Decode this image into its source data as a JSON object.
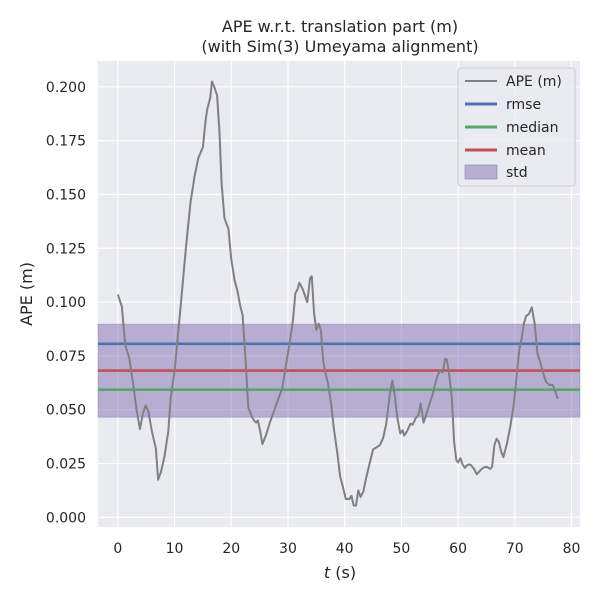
{
  "chart_data": {
    "type": "line",
    "title": "APE w.r.t. translation part (m)",
    "subtitle": "(with Sim(3) Umeyama alignment)",
    "xlabel_italic": "t",
    "xlabel_unit": " (s)",
    "ylabel": "APE (m)",
    "xlim": [
      -3.5,
      81.5
    ],
    "ylim": [
      -0.0045,
      0.212
    ],
    "xticks": [
      0,
      10,
      20,
      30,
      40,
      50,
      60,
      70,
      80
    ],
    "xtick_labels": [
      "0",
      "10",
      "20",
      "30",
      "40",
      "50",
      "60",
      "70",
      "80"
    ],
    "yticks": [
      0.0,
      0.025,
      0.05,
      0.075,
      0.1,
      0.125,
      0.15,
      0.175,
      0.2
    ],
    "ytick_labels": [
      "0.000",
      "0.025",
      "0.050",
      "0.075",
      "0.100",
      "0.125",
      "0.150",
      "0.175",
      "0.200"
    ],
    "grid": true,
    "legend_position": "top-right",
    "series": [
      {
        "name": "APE (m)",
        "color": "#808080",
        "points": [
          [
            0.0,
            0.1035
          ],
          [
            0.7,
            0.098
          ],
          [
            1.3,
            0.08
          ],
          [
            2.0,
            0.074
          ],
          [
            2.7,
            0.062
          ],
          [
            3.3,
            0.05
          ],
          [
            3.9,
            0.041
          ],
          [
            4.4,
            0.048
          ],
          [
            4.9,
            0.052
          ],
          [
            5.4,
            0.049
          ],
          [
            6.0,
            0.04
          ],
          [
            6.7,
            0.032
          ],
          [
            7.1,
            0.0175
          ],
          [
            7.6,
            0.021
          ],
          [
            8.2,
            0.028
          ],
          [
            8.9,
            0.04
          ],
          [
            9.3,
            0.055
          ],
          [
            10.0,
            0.068
          ],
          [
            11.0,
            0.096
          ],
          [
            12.0,
            0.125
          ],
          [
            12.8,
            0.146
          ],
          [
            13.5,
            0.158
          ],
          [
            14.2,
            0.167
          ],
          [
            15.0,
            0.172
          ],
          [
            15.5,
            0.185
          ],
          [
            15.8,
            0.19
          ],
          [
            16.3,
            0.195
          ],
          [
            16.6,
            0.2025
          ],
          [
            17.0,
            0.2
          ],
          [
            17.5,
            0.196
          ],
          [
            17.9,
            0.18
          ],
          [
            18.3,
            0.155
          ],
          [
            18.8,
            0.139
          ],
          [
            19.5,
            0.134
          ],
          [
            20.0,
            0.12
          ],
          [
            20.6,
            0.11
          ],
          [
            21.1,
            0.105
          ],
          [
            21.6,
            0.098
          ],
          [
            22.0,
            0.094
          ],
          [
            22.6,
            0.07
          ],
          [
            23.0,
            0.051
          ],
          [
            23.6,
            0.047
          ],
          [
            24.0,
            0.045
          ],
          [
            24.4,
            0.044
          ],
          [
            24.7,
            0.045
          ],
          [
            25.1,
            0.04
          ],
          [
            25.5,
            0.034
          ],
          [
            26.1,
            0.038
          ],
          [
            26.8,
            0.044
          ],
          [
            27.5,
            0.049
          ],
          [
            28.3,
            0.055
          ],
          [
            29.0,
            0.06
          ],
          [
            29.6,
            0.07
          ],
          [
            30.3,
            0.081
          ],
          [
            30.9,
            0.092
          ],
          [
            31.3,
            0.104
          ],
          [
            31.7,
            0.106
          ],
          [
            32.0,
            0.109
          ],
          [
            32.6,
            0.106
          ],
          [
            33.4,
            0.1
          ],
          [
            33.9,
            0.111
          ],
          [
            34.2,
            0.112
          ],
          [
            34.6,
            0.095
          ],
          [
            35.0,
            0.087
          ],
          [
            35.4,
            0.09
          ],
          [
            35.8,
            0.087
          ],
          [
            36.2,
            0.073
          ],
          [
            36.6,
            0.067
          ],
          [
            37.0,
            0.063
          ],
          [
            37.6,
            0.053
          ],
          [
            38.1,
            0.041
          ],
          [
            38.7,
            0.03
          ],
          [
            39.2,
            0.019
          ],
          [
            39.7,
            0.014
          ],
          [
            40.2,
            0.0085
          ],
          [
            40.8,
            0.0085
          ],
          [
            41.2,
            0.01
          ],
          [
            41.6,
            0.0055
          ],
          [
            42.0,
            0.0055
          ],
          [
            42.4,
            0.0125
          ],
          [
            42.8,
            0.0095
          ],
          [
            43.3,
            0.012
          ],
          [
            43.8,
            0.0185
          ],
          [
            44.4,
            0.025
          ],
          [
            45.0,
            0.0315
          ],
          [
            45.6,
            0.0325
          ],
          [
            46.2,
            0.0335
          ],
          [
            46.8,
            0.037
          ],
          [
            47.3,
            0.043
          ],
          [
            48.0,
            0.058
          ],
          [
            48.4,
            0.0635
          ],
          [
            48.8,
            0.0575
          ],
          [
            49.3,
            0.046
          ],
          [
            49.8,
            0.039
          ],
          [
            50.2,
            0.0405
          ],
          [
            50.5,
            0.038
          ],
          [
            51.0,
            0.04
          ],
          [
            51.6,
            0.0435
          ],
          [
            52.0,
            0.043
          ],
          [
            52.5,
            0.046
          ],
          [
            53.0,
            0.0475
          ],
          [
            53.4,
            0.053
          ],
          [
            53.9,
            0.044
          ],
          [
            54.3,
            0.047
          ],
          [
            55.0,
            0.053
          ],
          [
            55.5,
            0.057
          ],
          [
            56.0,
            0.0625
          ],
          [
            56.4,
            0.066
          ],
          [
            56.8,
            0.068
          ],
          [
            57.3,
            0.0675
          ],
          [
            57.7,
            0.0735
          ],
          [
            58.0,
            0.0735
          ],
          [
            58.4,
            0.067
          ],
          [
            58.9,
            0.0555
          ],
          [
            59.3,
            0.035
          ],
          [
            59.7,
            0.0265
          ],
          [
            60.0,
            0.0255
          ],
          [
            60.4,
            0.0275
          ],
          [
            60.8,
            0.0245
          ],
          [
            61.2,
            0.023
          ],
          [
            61.7,
            0.0245
          ],
          [
            62.2,
            0.0245
          ],
          [
            62.8,
            0.0225
          ],
          [
            63.3,
            0.02
          ],
          [
            63.8,
            0.0215
          ],
          [
            64.4,
            0.023
          ],
          [
            65.0,
            0.0235
          ],
          [
            65.7,
            0.0225
          ],
          [
            66.0,
            0.0235
          ],
          [
            66.4,
            0.0335
          ],
          [
            66.8,
            0.0365
          ],
          [
            67.2,
            0.035
          ],
          [
            67.6,
            0.0305
          ],
          [
            68.0,
            0.028
          ],
          [
            68.6,
            0.034
          ],
          [
            69.2,
            0.042
          ],
          [
            69.8,
            0.052
          ],
          [
            70.3,
            0.065
          ],
          [
            70.8,
            0.078
          ],
          [
            71.2,
            0.083
          ],
          [
            71.6,
            0.09
          ],
          [
            72.0,
            0.0935
          ],
          [
            72.5,
            0.0945
          ],
          [
            73.0,
            0.0975
          ],
          [
            73.5,
            0.09
          ],
          [
            74.0,
            0.076
          ],
          [
            74.5,
            0.072
          ],
          [
            75.0,
            0.067
          ],
          [
            75.5,
            0.063
          ],
          [
            76.1,
            0.0615
          ],
          [
            76.7,
            0.0615
          ],
          [
            77.2,
            0.058
          ],
          [
            77.6,
            0.055
          ]
        ]
      },
      {
        "name": "rmse",
        "color": "#4c72b0",
        "value": 0.0806
      },
      {
        "name": "median",
        "color": "#55a868",
        "value": 0.0593
      },
      {
        "name": "mean",
        "color": "#c44e52",
        "value": 0.0682
      },
      {
        "name": "std",
        "color": "#8172b2",
        "range": [
          0.0465,
          0.0897
        ]
      }
    ],
    "legend": [
      "APE (m)",
      "rmse",
      "median",
      "mean",
      "std"
    ]
  },
  "colors": {
    "plot_background": "#eaeaf2",
    "grid": "#ffffff",
    "legend_background": "#eaeaf2",
    "legend_border": "#cccccc"
  }
}
